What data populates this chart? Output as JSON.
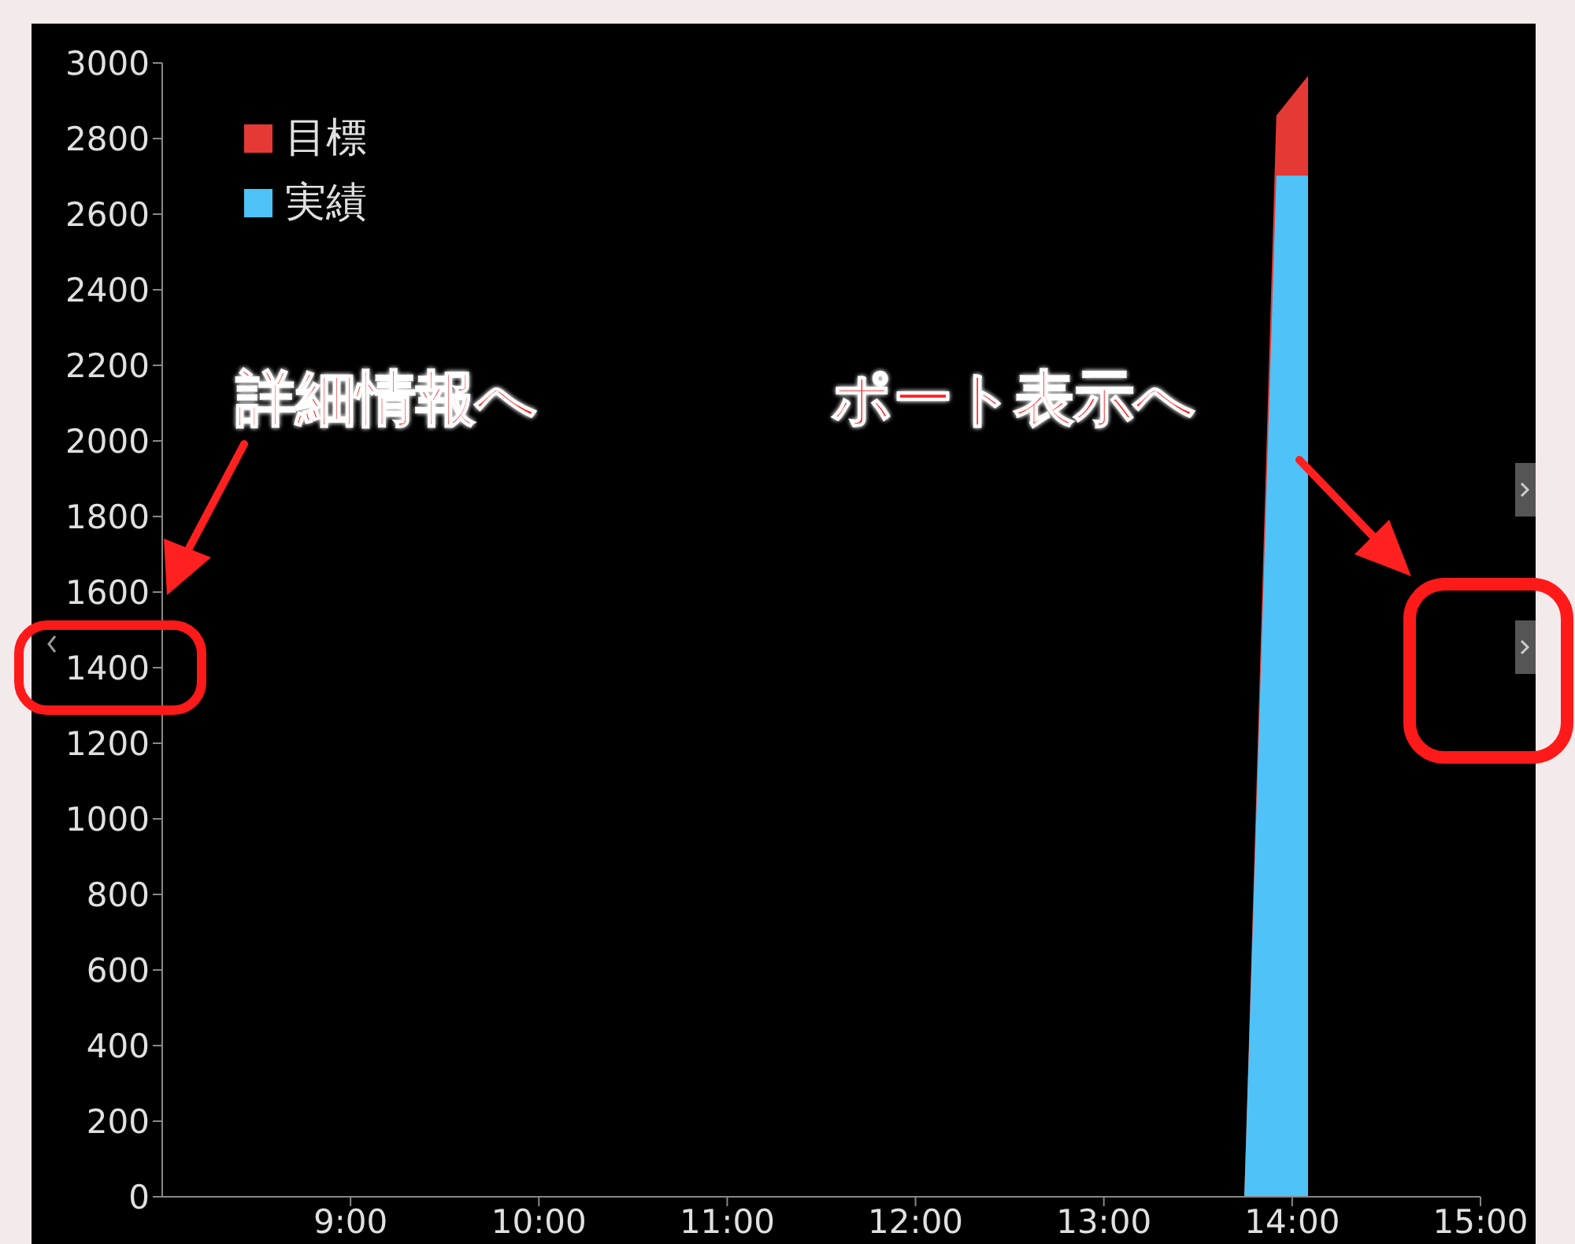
{
  "chart_data": {
    "type": "area",
    "xlim": [
      8,
      15
    ],
    "xticks": [
      {
        "value": 9,
        "label": "9:00"
      },
      {
        "value": 10,
        "label": "10:00"
      },
      {
        "value": 11,
        "label": "11:00"
      },
      {
        "value": 12,
        "label": "12:00"
      },
      {
        "value": 13,
        "label": "13:00"
      },
      {
        "value": 14,
        "label": "14:00"
      },
      {
        "value": 15,
        "label": "15:00"
      }
    ],
    "ylim": [
      0,
      3000
    ],
    "yticks": [
      0,
      200,
      400,
      600,
      800,
      1000,
      1200,
      1400,
      1600,
      1800,
      2000,
      2200,
      2400,
      2600,
      2800,
      3000
    ],
    "grid": false,
    "legend": "top left",
    "series": [
      {
        "name": "目標",
        "color": "#e53935",
        "x": [
          8.25,
          13.75,
          13.92,
          14.08,
          14.08
        ],
        "values": [
          0,
          0,
          2860,
          2960,
          0
        ]
      },
      {
        "name": "実績",
        "color": "#4fc3f7",
        "x": [
          8.25,
          13.75,
          13.92,
          14.08,
          14.08
        ],
        "values": [
          0,
          0,
          2700,
          2700,
          0
        ]
      }
    ],
    "annotations": [
      "詳細情報へ",
      "ポート表示へ"
    ]
  }
}
